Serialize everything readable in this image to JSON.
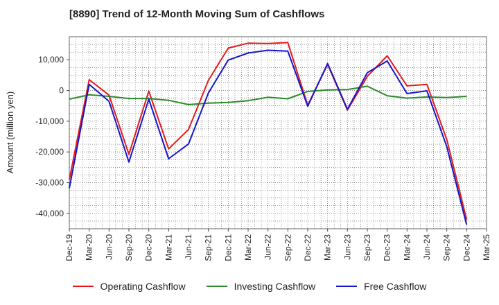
{
  "chart_data": {
    "type": "line",
    "title": "[8890]  Trend of 12-Month Moving Sum of Cashflows",
    "xlabel": "",
    "ylabel": "Amount (million yen)",
    "ylim": [
      -45000,
      17500
    ],
    "yticks": [
      10000,
      0,
      -10000,
      -20000,
      -30000,
      -40000
    ],
    "ytick_labels": [
      "10,000",
      "0",
      "-10,000",
      "-20,000",
      "-30,000",
      "-40,000"
    ],
    "grid": true,
    "legend_position": "bottom",
    "x_tick_labels": [
      "Dec-19",
      "Mar-20",
      "Jun-20",
      "Sep-20",
      "Dec-20",
      "Mar-21",
      "Jun-21",
      "Sep-21",
      "Dec-21",
      "Mar-22",
      "Jun-22",
      "Sep-22",
      "Dec-22",
      "Mar-23",
      "Jun-23",
      "Sep-23",
      "Dec-23",
      "Mar-24",
      "Jun-24",
      "Sep-24",
      "Dec-24",
      "Mar-25"
    ],
    "x": [
      "Dec-19",
      "Mar-20",
      "Jun-20",
      "Sep-20",
      "Dec-20",
      "Mar-21",
      "Jun-21",
      "Sep-21",
      "Dec-21",
      "Mar-22",
      "Jun-22",
      "Sep-22",
      "Dec-22",
      "Mar-23",
      "Jun-23",
      "Sep-23",
      "Dec-23",
      "Mar-24",
      "Jun-24",
      "Sep-24",
      "Dec-24"
    ],
    "series": [
      {
        "name": "Operating Cashflow",
        "color": "#e41a1c",
        "values": [
          -29000,
          3500,
          -1500,
          -20800,
          -200,
          -19000,
          -12700,
          3300,
          13800,
          15400,
          15300,
          15600,
          -4800,
          8500,
          -6400,
          4600,
          11300,
          1500,
          2000,
          -16000,
          -42000
        ]
      },
      {
        "name": "Investing Cashflow",
        "color": "#2a8a2a",
        "values": [
          -2800,
          -1400,
          -1900,
          -2600,
          -2600,
          -3200,
          -4600,
          -4100,
          -3900,
          -3300,
          -2200,
          -2700,
          -300,
          200,
          300,
          1400,
          -1700,
          -2500,
          -2100,
          -2300,
          -1900
        ]
      },
      {
        "name": "Free Cashflow",
        "color": "#1515cc",
        "values": [
          -31800,
          2000,
          -3500,
          -23300,
          -2800,
          -22200,
          -17400,
          -800,
          9900,
          12200,
          13100,
          12800,
          -5100,
          8800,
          -6100,
          5800,
          9600,
          -1000,
          -100,
          -18300,
          -43700
        ]
      }
    ]
  }
}
